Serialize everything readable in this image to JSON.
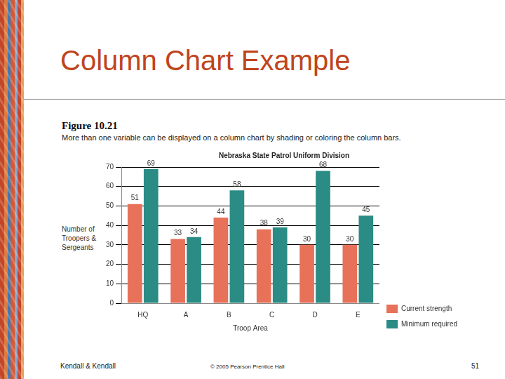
{
  "slide": {
    "title": "Column Chart Example",
    "figure_label": "Figure 10.21",
    "caption": "More than one variable can be displayed on a column chart by shading or coloring the column bars.",
    "footer": {
      "left": "Kendall & Kendall",
      "center": "© 2005 Pearson Prentice Hall",
      "right": "51"
    }
  },
  "chart_data": {
    "type": "bar",
    "title": "Nebraska State Patrol Uniform Division",
    "x_label": "Troop Area",
    "y_label": "Number of Troopers & Sergeants",
    "categories": [
      "HQ",
      "A",
      "B",
      "C",
      "D",
      "E"
    ],
    "series": [
      {
        "name": "Current strength",
        "color": "#e8715a",
        "values": [
          51,
          33,
          44,
          38,
          30,
          30
        ]
      },
      {
        "name": "Minimum required",
        "color": "#2a8c84",
        "values": [
          69,
          34,
          58,
          39,
          68,
          45
        ]
      }
    ],
    "ylim": [
      0,
      70
    ],
    "yticks": [
      0,
      10,
      20,
      30,
      40,
      50,
      60,
      70
    ],
    "grid": true,
    "legend": "lower right",
    "data_labels": true
  }
}
